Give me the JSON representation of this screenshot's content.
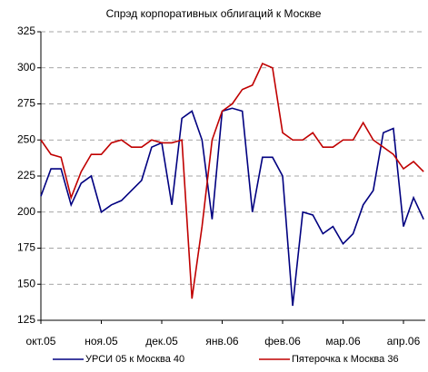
{
  "chart_data": {
    "type": "line",
    "title": "Спрэд корпоративных облигаций к Москве",
    "categories": [
      "окт.05",
      null,
      null,
      null,
      null,
      null,
      "ноя.05",
      null,
      null,
      null,
      null,
      null,
      "дек.05",
      null,
      null,
      null,
      null,
      null,
      "янв.06",
      null,
      null,
      null,
      null,
      null,
      "фев.06",
      null,
      null,
      null,
      null,
      null,
      "мар.06",
      null,
      null,
      null,
      null,
      null,
      "апр.06",
      null,
      null
    ],
    "series": [
      {
        "name": "УРСИ 05 к Москва 40",
        "color": "#000080",
        "values": [
          211,
          230,
          230,
          205,
          220,
          225,
          200,
          205,
          208,
          215,
          222,
          245,
          248,
          205,
          265,
          270,
          250,
          195,
          270,
          272,
          270,
          200,
          238,
          238,
          225,
          135,
          200,
          198,
          185,
          190,
          178,
          185,
          205,
          215,
          255,
          258,
          190,
          210,
          195
        ]
      },
      {
        "name": "Пятерочка к Москва 36",
        "color": "#c00000",
        "values": [
          250,
          240,
          238,
          210,
          228,
          240,
          240,
          248,
          250,
          245,
          245,
          250,
          248,
          248,
          250,
          140,
          190,
          250,
          270,
          275,
          285,
          288,
          303,
          300,
          255,
          250,
          250,
          255,
          245,
          245,
          250,
          250,
          262,
          250,
          245,
          240,
          230,
          235,
          228
        ]
      }
    ],
    "ylim": [
      125,
      325
    ],
    "yticks": [
      125,
      150,
      175,
      200,
      225,
      250,
      275,
      300,
      325
    ],
    "grid": true
  }
}
